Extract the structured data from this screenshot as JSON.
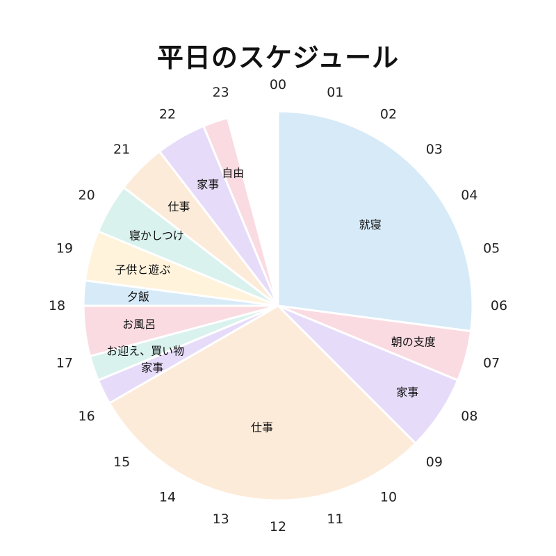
{
  "chart_data": {
    "type": "pie",
    "title": "平日のスケジュール",
    "hour_labels": [
      "00",
      "01",
      "02",
      "03",
      "04",
      "05",
      "06",
      "07",
      "08",
      "09",
      "10",
      "11",
      "12",
      "13",
      "14",
      "15",
      "16",
      "17",
      "18",
      "19",
      "20",
      "21",
      "22",
      "23"
    ],
    "slices": [
      {
        "label": "就寝",
        "start": 0.0,
        "end": 6.5,
        "color": "#d6eaf8"
      },
      {
        "label": "朝の支度",
        "start": 6.5,
        "end": 7.5,
        "color": "#fadbe2"
      },
      {
        "label": "家事",
        "start": 7.5,
        "end": 9.0,
        "color": "#e6dcfa"
      },
      {
        "label": "仕事",
        "start": 9.0,
        "end": 16.0,
        "color": "#fdebd9"
      },
      {
        "label": "家事",
        "start": 16.0,
        "end": 16.5,
        "color": "#e6dcfa"
      },
      {
        "label": "お迎え、買い物",
        "start": 16.5,
        "end": 17.0,
        "color": "#d9f2ee"
      },
      {
        "label": "お風呂",
        "start": 17.0,
        "end": 18.0,
        "color": "#fadbe2"
      },
      {
        "label": "夕飯",
        "start": 18.0,
        "end": 18.5,
        "color": "#d6eaf8"
      },
      {
        "label": "子供と遊ぶ",
        "start": 18.5,
        "end": 19.5,
        "color": "#fff3dc"
      },
      {
        "label": "寝かしつけ",
        "start": 19.5,
        "end": 20.5,
        "color": "#d9f2ee"
      },
      {
        "label": "仕事",
        "start": 20.5,
        "end": 21.5,
        "color": "#fdebd9"
      },
      {
        "label": "家事",
        "start": 21.5,
        "end": 22.5,
        "color": "#e6dcfa"
      },
      {
        "label": "自由",
        "start": 22.5,
        "end": 23.0,
        "color": "#fadbe2"
      }
    ]
  }
}
